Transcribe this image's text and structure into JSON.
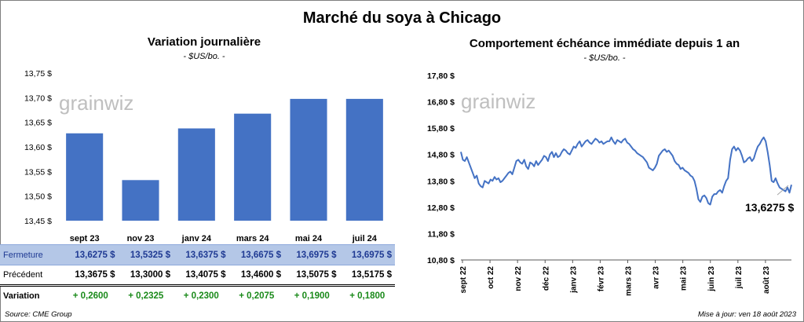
{
  "title": "Marché du soya à Chicago",
  "left_panel": {
    "title": "Variation journalière",
    "subtitle": "- $US/bo. -",
    "watermark": "grainwiz"
  },
  "right_panel": {
    "title": "Comportement échéance immédiate depuis 1 an",
    "subtitle": "- $US/bo. -",
    "watermark": "grainwiz",
    "last_value_label": "13,6275 $"
  },
  "table": {
    "rows": [
      {
        "label": "Fermeture",
        "values": [
          "13,6275 $",
          "13,5325 $",
          "13,6375 $",
          "13,6675 $",
          "13,6975 $",
          "13,6975 $"
        ]
      },
      {
        "label": "Précédent",
        "values": [
          "13,3675 $",
          "13,3000 $",
          "13,4075 $",
          "13,4600 $",
          "13,5075 $",
          "13,5175 $"
        ]
      },
      {
        "label": "Variation",
        "values": [
          "+ 0,2600",
          "+ 0,2325",
          "+ 0,2300",
          "+ 0,2075",
          "+ 0,1900",
          "+ 0,1800"
        ]
      }
    ]
  },
  "footer": {
    "source": "Source: CME Group",
    "updated": "Mise à jour: ven 18 août 2023"
  },
  "colors": {
    "bar": "#4472c4",
    "line": "#4472c4",
    "positive": "#1a8a1a",
    "highlight_row": "#b4c7e7"
  },
  "chart_data": [
    {
      "type": "bar",
      "title": "Variation journalière",
      "subtitle": "- $US/bo. -",
      "categories": [
        "sept 23",
        "nov 23",
        "janv 24",
        "mars 24",
        "mai 24",
        "juil 24"
      ],
      "values": [
        13.6275,
        13.5325,
        13.6375,
        13.6675,
        13.6975,
        13.6975
      ],
      "ylim": [
        13.45,
        13.75
      ],
      "yticks": [
        13.45,
        13.5,
        13.55,
        13.6,
        13.65,
        13.7,
        13.75
      ],
      "ytick_labels": [
        "13,45 $",
        "13,50 $",
        "13,55 $",
        "13,60 $",
        "13,65 $",
        "13,70 $",
        "13,75 $"
      ],
      "grid": false
    },
    {
      "type": "line",
      "title": "Comportement échéance immédiate depuis 1 an",
      "subtitle": "- $US/bo. -",
      "x_tick_labels": [
        "sept 22",
        "oct 22",
        "nov 22",
        "déc 22",
        "janv 23",
        "févr 23",
        "mars 23",
        "avr 23",
        "mai 23",
        "juin 23",
        "juil 23",
        "août 23"
      ],
      "ylim": [
        10.8,
        17.8
      ],
      "yticks": [
        10.8,
        11.8,
        12.8,
        13.8,
        14.8,
        15.8,
        16.8,
        17.8
      ],
      "ytick_labels": [
        "10,80 $",
        "11,80 $",
        "12,80 $",
        "13,80 $",
        "14,80 $",
        "15,80 $",
        "16,80 $",
        "17,80 $"
      ],
      "grid": false,
      "series": [
        {
          "values": [
            14.9,
            14.6,
            14.55,
            14.7,
            14.5,
            14.3,
            14.1,
            13.9,
            14.0,
            13.7,
            13.6,
            13.55,
            13.8,
            13.75,
            13.7,
            13.85,
            13.8,
            13.95,
            13.85,
            13.9,
            13.75,
            13.8,
            13.9,
            14.0,
            14.1,
            14.15,
            14.05,
            14.3,
            14.55,
            14.6,
            14.5,
            14.45,
            14.6,
            14.35,
            14.25,
            14.5,
            14.45,
            14.35,
            14.55,
            14.4,
            14.5,
            14.6,
            14.75,
            14.7,
            14.55,
            14.8,
            14.9,
            14.7,
            14.85,
            14.7,
            14.75,
            14.9,
            15.0,
            14.95,
            14.85,
            14.8,
            14.95,
            15.1,
            15.05,
            15.2,
            15.3,
            15.1,
            15.2,
            15.3,
            15.35,
            15.25,
            15.2,
            15.3,
            15.4,
            15.35,
            15.25,
            15.3,
            15.2,
            15.25,
            15.3,
            15.3,
            15.45,
            15.3,
            15.2,
            15.35,
            15.3,
            15.25,
            15.35,
            15.4,
            15.25,
            15.2,
            15.1,
            15.0,
            14.95,
            14.85,
            14.8,
            14.75,
            14.7,
            14.6,
            14.5,
            14.3,
            14.25,
            14.2,
            14.3,
            14.45,
            14.75,
            14.85,
            14.95,
            15.0,
            14.9,
            14.95,
            14.85,
            14.75,
            14.55,
            14.45,
            14.4,
            14.25,
            14.3,
            14.2,
            14.15,
            14.1,
            14.0,
            13.95,
            13.8,
            13.5,
            13.1,
            13.0,
            13.2,
            13.25,
            13.15,
            12.95,
            12.9,
            13.2,
            13.3,
            13.3,
            13.4,
            13.45,
            13.35,
            13.6,
            13.8,
            13.9,
            14.6,
            15.0,
            15.1,
            14.95,
            15.05,
            14.95,
            14.75,
            14.5,
            14.55,
            14.65,
            14.7,
            14.55,
            14.65,
            14.9,
            15.1,
            15.2,
            15.35,
            15.45,
            15.3,
            14.9,
            14.4,
            13.8,
            13.75,
            13.9,
            13.7,
            13.55,
            13.5,
            13.45,
            13.4,
            13.55,
            13.35,
            13.65
          ]
        }
      ],
      "last_value": 13.6275,
      "annotation": "13,6275 $"
    }
  ]
}
